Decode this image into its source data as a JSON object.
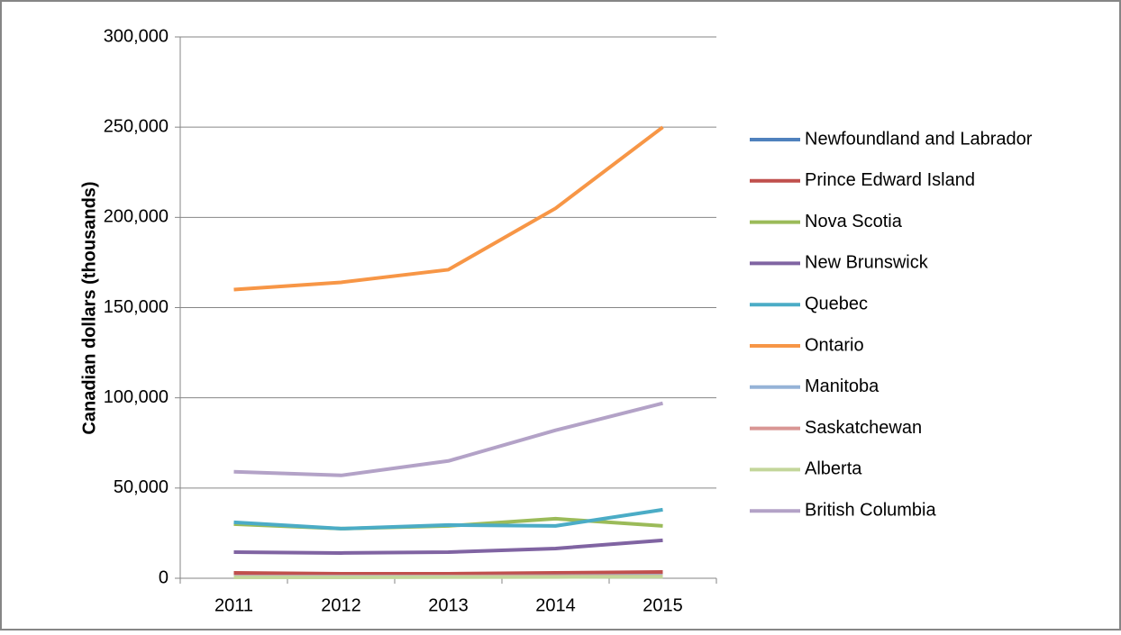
{
  "chart_data": {
    "type": "line",
    "y_label": "Canadian dollars (thousands)",
    "categories": [
      "2011",
      "2012",
      "2013",
      "2014",
      "2015"
    ],
    "series": [
      {
        "name": "Newfoundland and Labrador",
        "color": "#4F81BD",
        "values": [
          1500,
          1500,
          1500,
          1500,
          1800
        ]
      },
      {
        "name": "Prince Edward Island",
        "color": "#C0504D",
        "values": [
          3000,
          2500,
          2500,
          3000,
          3500
        ]
      },
      {
        "name": "Nova Scotia",
        "color": "#9BBB59",
        "values": [
          30000,
          27500,
          29000,
          33000,
          29000
        ]
      },
      {
        "name": "New Brunswick",
        "color": "#8064A2",
        "values": [
          14500,
          14000,
          14500,
          16500,
          21000
        ]
      },
      {
        "name": "Quebec",
        "color": "#4BACC6",
        "values": [
          31000,
          27500,
          29500,
          29000,
          38000
        ]
      },
      {
        "name": "Ontario",
        "color": "#F79646",
        "values": [
          160000,
          164000,
          171000,
          205000,
          250000
        ]
      },
      {
        "name": "Manitoba",
        "color": "#95B3D7",
        "values": [
          1000,
          1000,
          1000,
          1200,
          1500
        ]
      },
      {
        "name": "Saskatchewan",
        "color": "#D99694",
        "values": [
          800,
          800,
          900,
          1000,
          1200
        ]
      },
      {
        "name": "Alberta",
        "color": "#C3D69B",
        "values": [
          500,
          500,
          600,
          700,
          900
        ]
      },
      {
        "name": "British Columbia",
        "color": "#B3A2C7",
        "values": [
          59000,
          57000,
          65000,
          82000,
          97000
        ]
      }
    ],
    "ylim": [
      0,
      300000
    ],
    "yticks": [
      0,
      {
        "value": 50000,
        "label": "50,000"
      },
      {
        "value": 100000,
        "label": "100,000"
      },
      {
        "value": 150000,
        "label": "150,000"
      },
      {
        "value": 200000,
        "label": "200,000"
      },
      {
        "value": 250000,
        "label": "250,000"
      },
      {
        "value": 300000,
        "label": "300,000"
      }
    ],
    "grid": true,
    "legend": "right"
  }
}
